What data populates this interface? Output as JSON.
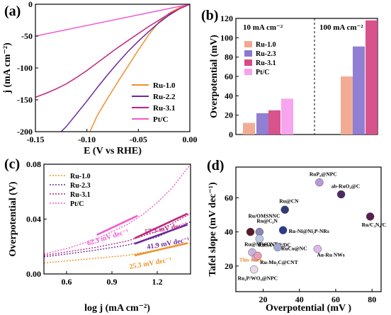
{
  "colors": {
    "ru10": "#F0922A",
    "ru22": "#6A2A9E",
    "ru31": "#C2237C",
    "ptc": "#F05CD0",
    "bar_ru10": "#F2A88E",
    "bar_ru23": "#8A78D0",
    "bar_ru31": "#D64A86",
    "bar_ptc": "#F7A0EE"
  },
  "chart_data": [
    {
      "panel": "(a)",
      "type": "line",
      "xlabel": "E (V vs RHE)",
      "ylabel": "j (mA cm⁻²)",
      "xlim": [
        -0.15,
        0.0
      ],
      "ylim": [
        -200,
        0
      ],
      "xticks": [
        -0.15,
        -0.1,
        -0.05,
        0.0
      ],
      "xtick_labels": [
        "-0.15",
        "-0.10",
        "-0.05",
        "0.00"
      ],
      "yticks": [
        0,
        -50,
        -100,
        -150,
        -200
      ],
      "ytick_labels": [
        "0",
        "-50",
        "-100",
        "-150",
        "-200"
      ],
      "legend_position": "bottom-right",
      "series": [
        {
          "name": "Ru-1.0",
          "color_key": "ru10",
          "points": [
            [
              0.0,
              0
            ],
            [
              -0.005,
              -2
            ],
            [
              -0.01,
              -5
            ],
            [
              -0.02,
              -14
            ],
            [
              -0.03,
              -28
            ],
            [
              -0.04,
              -48
            ],
            [
              -0.05,
              -72
            ],
            [
              -0.06,
              -97
            ],
            [
              -0.07,
              -122
            ],
            [
              -0.08,
              -148
            ],
            [
              -0.09,
              -175
            ],
            [
              -0.097,
              -200
            ]
          ]
        },
        {
          "name": "Ru-2.2",
          "color_key": "ru22",
          "points": [
            [
              0.0,
              0
            ],
            [
              -0.01,
              -7
            ],
            [
              -0.02,
              -17
            ],
            [
              -0.03,
              -29
            ],
            [
              -0.04,
              -43
            ],
            [
              -0.05,
              -58
            ],
            [
              -0.06,
              -74
            ],
            [
              -0.07,
              -92
            ],
            [
              -0.08,
              -111
            ],
            [
              -0.09,
              -131
            ],
            [
              -0.1,
              -152
            ],
            [
              -0.11,
              -172
            ],
            [
              -0.12,
              -192
            ],
            [
              -0.125,
              -200
            ]
          ]
        },
        {
          "name": "Ru-3.1",
          "color_key": "ru31",
          "points": [
            [
              0.0,
              0
            ],
            [
              -0.01,
              -7
            ],
            [
              -0.02,
              -15
            ],
            [
              -0.03,
              -25
            ],
            [
              -0.04,
              -35
            ],
            [
              -0.05,
              -46
            ],
            [
              -0.06,
              -57
            ],
            [
              -0.07,
              -68
            ],
            [
              -0.08,
              -80
            ],
            [
              -0.09,
              -92
            ],
            [
              -0.1,
              -104
            ],
            [
              -0.11,
              -115
            ],
            [
              -0.12,
              -125
            ],
            [
              -0.13,
              -133
            ],
            [
              -0.14,
              -140
            ],
            [
              -0.15,
              -146
            ]
          ]
        },
        {
          "name": "Pt/C",
          "color_key": "ptc",
          "points": [
            [
              0.0,
              0
            ],
            [
              -0.15,
              -50
            ]
          ]
        }
      ]
    },
    {
      "panel": "(b)",
      "type": "bar",
      "ylabel": "Overpotential (mV)",
      "ylim": [
        0,
        120
      ],
      "yticks": [
        0,
        20,
        40,
        60,
        80,
        100,
        120
      ],
      "groups": [
        "10 mA cm⁻²",
        "100 mA cm⁻²"
      ],
      "legend_position": "top-left",
      "series": [
        {
          "name": "Ru-1.0",
          "color_key": "bar_ru10",
          "values": [
            12,
            60
          ]
        },
        {
          "name": "Ru-2.3",
          "color_key": "bar_ru23",
          "values": [
            22,
            91
          ]
        },
        {
          "name": "Ru-3.1",
          "color_key": "bar_ru31",
          "values": [
            25,
            118
          ]
        },
        {
          "name": "Pt/C",
          "color_key": "bar_ptc",
          "values": [
            37,
            null
          ]
        }
      ]
    },
    {
      "panel": "(c)",
      "type": "line",
      "xlabel": "log j (mA cm⁻²)",
      "ylabel": "Overpotential (V)",
      "xlim": [
        0.45,
        1.42
      ],
      "ylim": [
        0.0,
        0.08
      ],
      "xticks": [
        0.6,
        0.9,
        1.2
      ],
      "xtick_labels": [
        "0.6",
        "0.9",
        "1.2"
      ],
      "yticks": [
        0.0,
        0.04,
        0.08
      ],
      "ytick_labels": [
        "0.00",
        "0.04",
        "0.08"
      ],
      "legend_position": "top-left",
      "series": [
        {
          "name": "Ru-1.0",
          "color_key": "ru10",
          "points": [
            [
              0.45,
              0.008
            ],
            [
              0.6,
              0.0095
            ],
            [
              0.8,
              0.0115
            ],
            [
              1.0,
              0.0135
            ],
            [
              1.2,
              0.0175
            ],
            [
              1.42,
              0.0225
            ]
          ],
          "fit": [
            [
              1.05,
              0.0135
            ],
            [
              1.4,
              0.0225
            ]
          ],
          "tafel": "25.3 mV dec⁻¹"
        },
        {
          "name": "Ru-2.3",
          "color_key": "ru22",
          "points": [
            [
              0.45,
              0.0125
            ],
            [
              0.6,
              0.0145
            ],
            [
              0.8,
              0.0175
            ],
            [
              1.0,
              0.021
            ],
            [
              1.2,
              0.027
            ],
            [
              1.42,
              0.038
            ]
          ],
          "fit": [
            [
              1.05,
              0.022
            ],
            [
              1.4,
              0.036
            ]
          ],
          "tafel": "41.9 mV dec⁻¹"
        },
        {
          "name": "Ru-3.1",
          "color_key": "ru31",
          "points": [
            [
              0.45,
              0.0135
            ],
            [
              0.6,
              0.016
            ],
            [
              0.8,
              0.0195
            ],
            [
              1.0,
              0.024
            ],
            [
              1.2,
              0.031
            ],
            [
              1.42,
              0.044
            ]
          ],
          "fit": [
            [
              1.05,
              0.026
            ],
            [
              1.4,
              0.044
            ]
          ],
          "tafel": "57.3 mV dec⁻¹"
        },
        {
          "name": "Pt/C",
          "color_key": "ptc",
          "points": [
            [
              0.45,
              0.0145
            ],
            [
              0.6,
              0.0185
            ],
            [
              0.8,
              0.0255
            ],
            [
              1.0,
              0.036
            ],
            [
              1.1,
              0.043
            ],
            [
              1.2,
              0.052
            ],
            [
              1.3,
              0.063
            ],
            [
              1.42,
              0.08
            ]
          ],
          "fit": [
            [
              0.8,
              0.0285
            ],
            [
              1.07,
              0.0425
            ]
          ],
          "tafel": "62.3 mV dec⁻¹"
        }
      ]
    },
    {
      "panel": "(d)",
      "type": "scatter",
      "xlabel": "Overpotential (mV )",
      "ylabel": "Tafel slope (mV dec⁻¹)",
      "xlim": [
        5,
        85
      ],
      "ylim": [
        5,
        78
      ],
      "xticks": [
        20,
        40,
        60,
        80
      ],
      "yticks": [
        20,
        40,
        60
      ],
      "points": [
        {
          "label": "RuP₂@NPC",
          "x": 51,
          "y": 69,
          "color": "#B59AD8"
        },
        {
          "label": "ab-RuO₂@C",
          "x": 63,
          "y": 62,
          "color": "#4A2A66"
        },
        {
          "label": "Ru/C₃N₄/C",
          "x": 79,
          "y": 49,
          "color": "#5A1F4E"
        },
        {
          "label": "Ru@CN",
          "x": 32,
          "y": 53,
          "color": "#2E3A7A"
        },
        {
          "label": "Ru/OMSNNC",
          "x": 13,
          "y": 40,
          "color": "#5A1A2A"
        },
        {
          "label": "Ru@C₂N",
          "x": 18,
          "y": 40,
          "color": "#8D86B8"
        },
        {
          "label": "Ru-Ni@Ni₂P-NRs",
          "x": 31,
          "y": 41,
          "color": "#2A3A8C"
        },
        {
          "label": "RuSA+NP/DC",
          "x": 18,
          "y": 36,
          "color": "#B8CBE8"
        },
        {
          "label": "Ru@MWCNT",
          "x": 14,
          "y": 28,
          "color": "#C7B7DF"
        },
        {
          "label": "RuCo@NC",
          "x": 28,
          "y": 31,
          "color": "#A3A9D2"
        },
        {
          "label": "Au-Ru NWs",
          "x": 50,
          "y": 30,
          "color": "#DDB7EA"
        },
        {
          "label": "Ru-Mo₂C@CNT",
          "x": 16,
          "y": 25,
          "color": "#E8B0C8"
        },
        {
          "label": "This work",
          "x": 17,
          "y": 26,
          "color": "#E8A0B4"
        },
        {
          "label": "Ru₂P/WO₃@NPC",
          "x": 15,
          "y": 18,
          "color": "#E8D8E8"
        }
      ]
    }
  ]
}
